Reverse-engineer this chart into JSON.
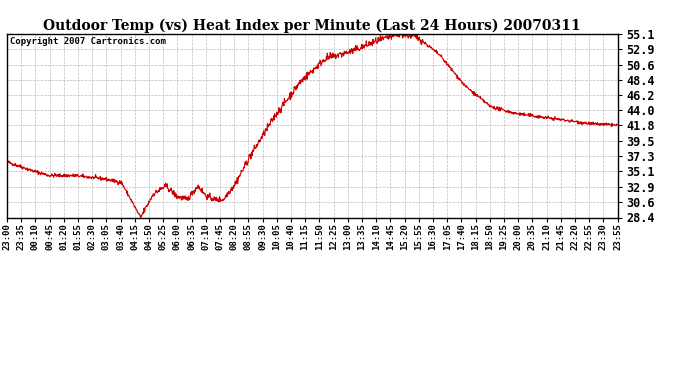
{
  "title": "Outdoor Temp (vs) Heat Index per Minute (Last 24 Hours) 20070311",
  "copyright": "Copyright 2007 Cartronics.com",
  "line_color": "#cc0000",
  "background_color": "#ffffff",
  "grid_color": "#bbbbbb",
  "yticks": [
    28.4,
    30.6,
    32.9,
    35.1,
    37.3,
    39.5,
    41.8,
    44.0,
    46.2,
    48.4,
    50.6,
    52.9,
    55.1
  ],
  "xtick_labels": [
    "23:00",
    "23:35",
    "00:10",
    "00:45",
    "01:20",
    "01:55",
    "02:30",
    "03:05",
    "03:40",
    "04:15",
    "04:50",
    "05:25",
    "06:00",
    "06:35",
    "07:10",
    "07:45",
    "08:20",
    "08:55",
    "09:30",
    "10:05",
    "10:40",
    "11:15",
    "11:50",
    "12:25",
    "13:00",
    "13:35",
    "14:10",
    "14:45",
    "15:20",
    "15:55",
    "16:30",
    "17:05",
    "17:40",
    "18:15",
    "18:50",
    "19:25",
    "20:00",
    "20:35",
    "21:10",
    "21:45",
    "22:20",
    "22:55",
    "23:30",
    "23:55"
  ],
  "ymin": 28.4,
  "ymax": 55.1,
  "control_t": [
    0,
    60,
    100,
    160,
    230,
    270,
    315,
    345,
    375,
    400,
    425,
    450,
    470,
    490,
    510,
    540,
    570,
    630,
    690,
    750,
    810,
    870,
    930,
    970,
    1020,
    1080,
    1140,
    1200,
    1320,
    1380,
    1439
  ],
  "control_v": [
    36.5,
    35.2,
    34.5,
    34.5,
    34.0,
    33.5,
    28.4,
    31.8,
    33.0,
    31.5,
    31.0,
    33.0,
    31.5,
    31.0,
    31.0,
    33.5,
    37.0,
    43.0,
    48.0,
    51.5,
    52.5,
    54.0,
    55.1,
    54.5,
    52.0,
    47.5,
    44.5,
    43.5,
    42.5,
    42.0,
    41.8
  ],
  "noise_seed": 42,
  "fig_width": 6.9,
  "fig_height": 3.75,
  "dpi": 100
}
